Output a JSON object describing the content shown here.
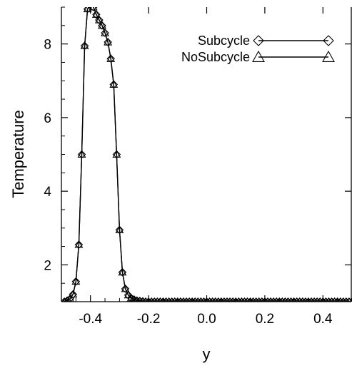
{
  "chart_data": {
    "type": "line",
    "title": "",
    "xlabel": "y",
    "ylabel": "Temperature",
    "xlim": [
      -0.5,
      0.5
    ],
    "ylim": [
      1,
      9
    ],
    "xticks": [
      -0.4,
      -0.2,
      0.0,
      0.2,
      0.4
    ],
    "xtick_labels": [
      "-0.4",
      "-0.2",
      "0.0",
      "0.2",
      "0.4"
    ],
    "yticks": [
      2,
      4,
      6,
      8
    ],
    "ytick_labels": [
      "2",
      "4",
      "6",
      "8"
    ],
    "legend_position": "top-right",
    "grid": false,
    "x": [
      -0.49,
      -0.48,
      -0.47,
      -0.46,
      -0.45,
      -0.44,
      -0.43,
      -0.42,
      -0.41,
      -0.4,
      -0.39,
      -0.38,
      -0.37,
      -0.36,
      -0.35,
      -0.34,
      -0.33,
      -0.32,
      -0.31,
      -0.3,
      -0.29,
      -0.28,
      -0.27,
      -0.26,
      -0.25,
      -0.24,
      -0.23,
      -0.22,
      -0.21,
      -0.2,
      -0.19,
      -0.18,
      -0.17,
      -0.16,
      -0.15,
      -0.14,
      -0.13,
      -0.12,
      -0.11,
      -0.1,
      -0.09,
      -0.08,
      -0.07,
      -0.06,
      -0.05,
      -0.04,
      -0.03,
      -0.02,
      -0.01,
      0.0,
      0.01,
      0.02,
      0.03,
      0.04,
      0.05,
      0.06,
      0.07,
      0.08,
      0.09,
      0.1,
      0.11,
      0.12,
      0.13,
      0.14,
      0.15,
      0.16,
      0.17,
      0.18,
      0.19,
      0.2,
      0.21,
      0.22,
      0.23,
      0.24,
      0.25,
      0.26,
      0.27,
      0.28,
      0.29,
      0.3,
      0.31,
      0.32,
      0.33,
      0.34,
      0.35,
      0.36,
      0.37,
      0.38,
      0.39,
      0.4,
      0.41,
      0.42,
      0.43,
      0.44,
      0.45,
      0.46,
      0.47,
      0.48,
      0.49
    ],
    "series": [
      {
        "name": "Subcycle",
        "marker": "diamond",
        "values": [
          1.0,
          1.03,
          1.08,
          1.2,
          1.55,
          2.55,
          5.0,
          7.95,
          8.95,
          9.1,
          9.0,
          8.8,
          8.65,
          8.5,
          8.3,
          8.05,
          7.6,
          6.9,
          5.0,
          2.95,
          1.8,
          1.35,
          1.18,
          1.1,
          1.06,
          1.03,
          1.02,
          1.01,
          1.0,
          1.0,
          1.0,
          1.0,
          1.0,
          1.0,
          1.0,
          1.0,
          1.0,
          1.0,
          1.0,
          1.0,
          1.0,
          1.0,
          1.0,
          1.0,
          1.0,
          1.0,
          1.0,
          1.0,
          1.0,
          1.0,
          1.0,
          1.0,
          1.0,
          1.0,
          1.0,
          1.0,
          1.0,
          1.0,
          1.0,
          1.0,
          1.0,
          1.0,
          1.0,
          1.0,
          1.0,
          1.0,
          1.0,
          1.0,
          1.0,
          1.0,
          1.0,
          1.0,
          1.0,
          1.0,
          1.0,
          1.0,
          1.0,
          1.0,
          1.0,
          1.0,
          1.0,
          1.0,
          1.0,
          1.0,
          1.0,
          1.0,
          1.0,
          1.0,
          1.0,
          1.0,
          1.0,
          1.0,
          1.0,
          1.0,
          1.0,
          1.0,
          1.0,
          1.0,
          1.0
        ]
      },
      {
        "name": "NoSubcycle",
        "marker": "triangle",
        "values": [
          1.0,
          1.03,
          1.08,
          1.2,
          1.55,
          2.55,
          5.0,
          7.95,
          8.95,
          9.1,
          9.0,
          8.8,
          8.65,
          8.5,
          8.3,
          8.05,
          7.6,
          6.9,
          5.0,
          2.95,
          1.8,
          1.35,
          1.18,
          1.1,
          1.06,
          1.03,
          1.02,
          1.01,
          1.0,
          1.0,
          1.0,
          1.0,
          1.0,
          1.0,
          1.0,
          1.0,
          1.0,
          1.0,
          1.0,
          1.0,
          1.0,
          1.0,
          1.0,
          1.0,
          1.0,
          1.0,
          1.0,
          1.0,
          1.0,
          1.0,
          1.0,
          1.0,
          1.0,
          1.0,
          1.0,
          1.0,
          1.0,
          1.0,
          1.0,
          1.0,
          1.0,
          1.0,
          1.0,
          1.0,
          1.0,
          1.0,
          1.0,
          1.0,
          1.0,
          1.0,
          1.0,
          1.0,
          1.0,
          1.0,
          1.0,
          1.0,
          1.0,
          1.0,
          1.0,
          1.0,
          1.0,
          1.0,
          1.0,
          1.0,
          1.0,
          1.0,
          1.0,
          1.0,
          1.0,
          1.0,
          1.0,
          1.0,
          1.0,
          1.0,
          1.0,
          1.0,
          1.0,
          1.0,
          1.0
        ]
      }
    ]
  }
}
